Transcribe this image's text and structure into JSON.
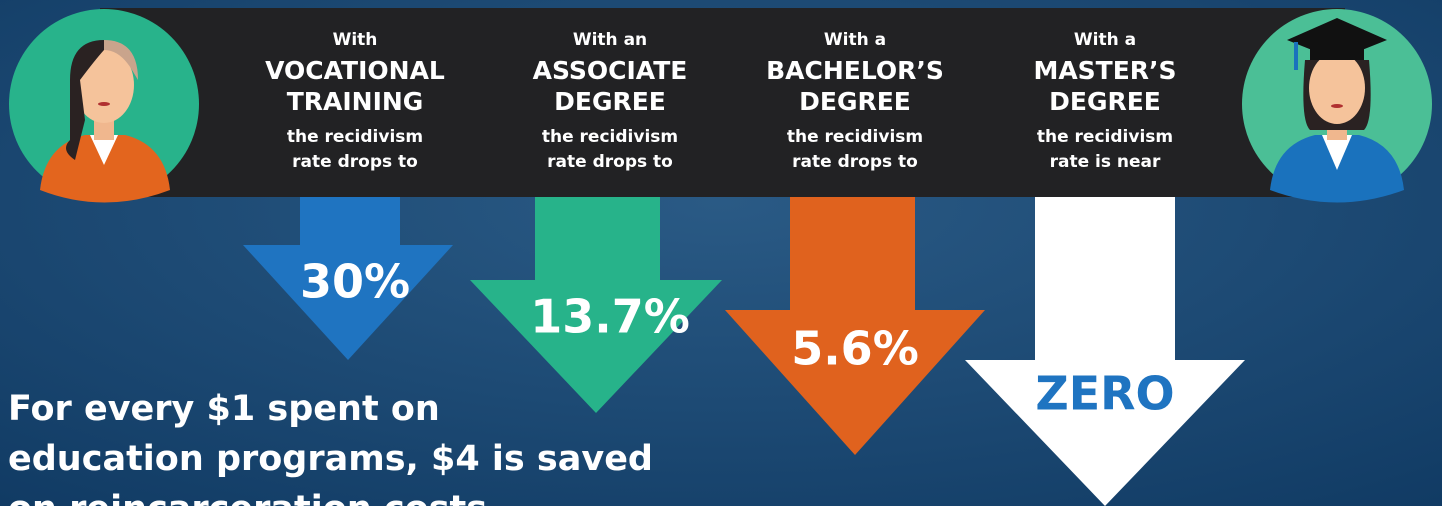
{
  "columns": [
    {
      "intro": "With",
      "heading": [
        "VOCATIONAL",
        "TRAINING"
      ],
      "detail": [
        "the recidivism",
        "rate drops to"
      ],
      "value": "30%"
    },
    {
      "intro": "With an",
      "heading": [
        "ASSOCIATE",
        "DEGREE"
      ],
      "detail": [
        "the recidivism",
        "rate drops to"
      ],
      "value": "13.7%"
    },
    {
      "intro": "With a",
      "heading": [
        "BACHELOR’S",
        "DEGREE"
      ],
      "detail": [
        "the recidivism",
        "rate drops to"
      ],
      "value": "5.6%"
    },
    {
      "intro": "With a",
      "heading": [
        "MASTER’S",
        "DEGREE"
      ],
      "detail": [
        "the recidivism",
        "rate is near"
      ],
      "value": "ZERO"
    }
  ],
  "footer": [
    "For every $1 spent on",
    "education programs, $4 is saved",
    "on reincarceration costs."
  ]
}
